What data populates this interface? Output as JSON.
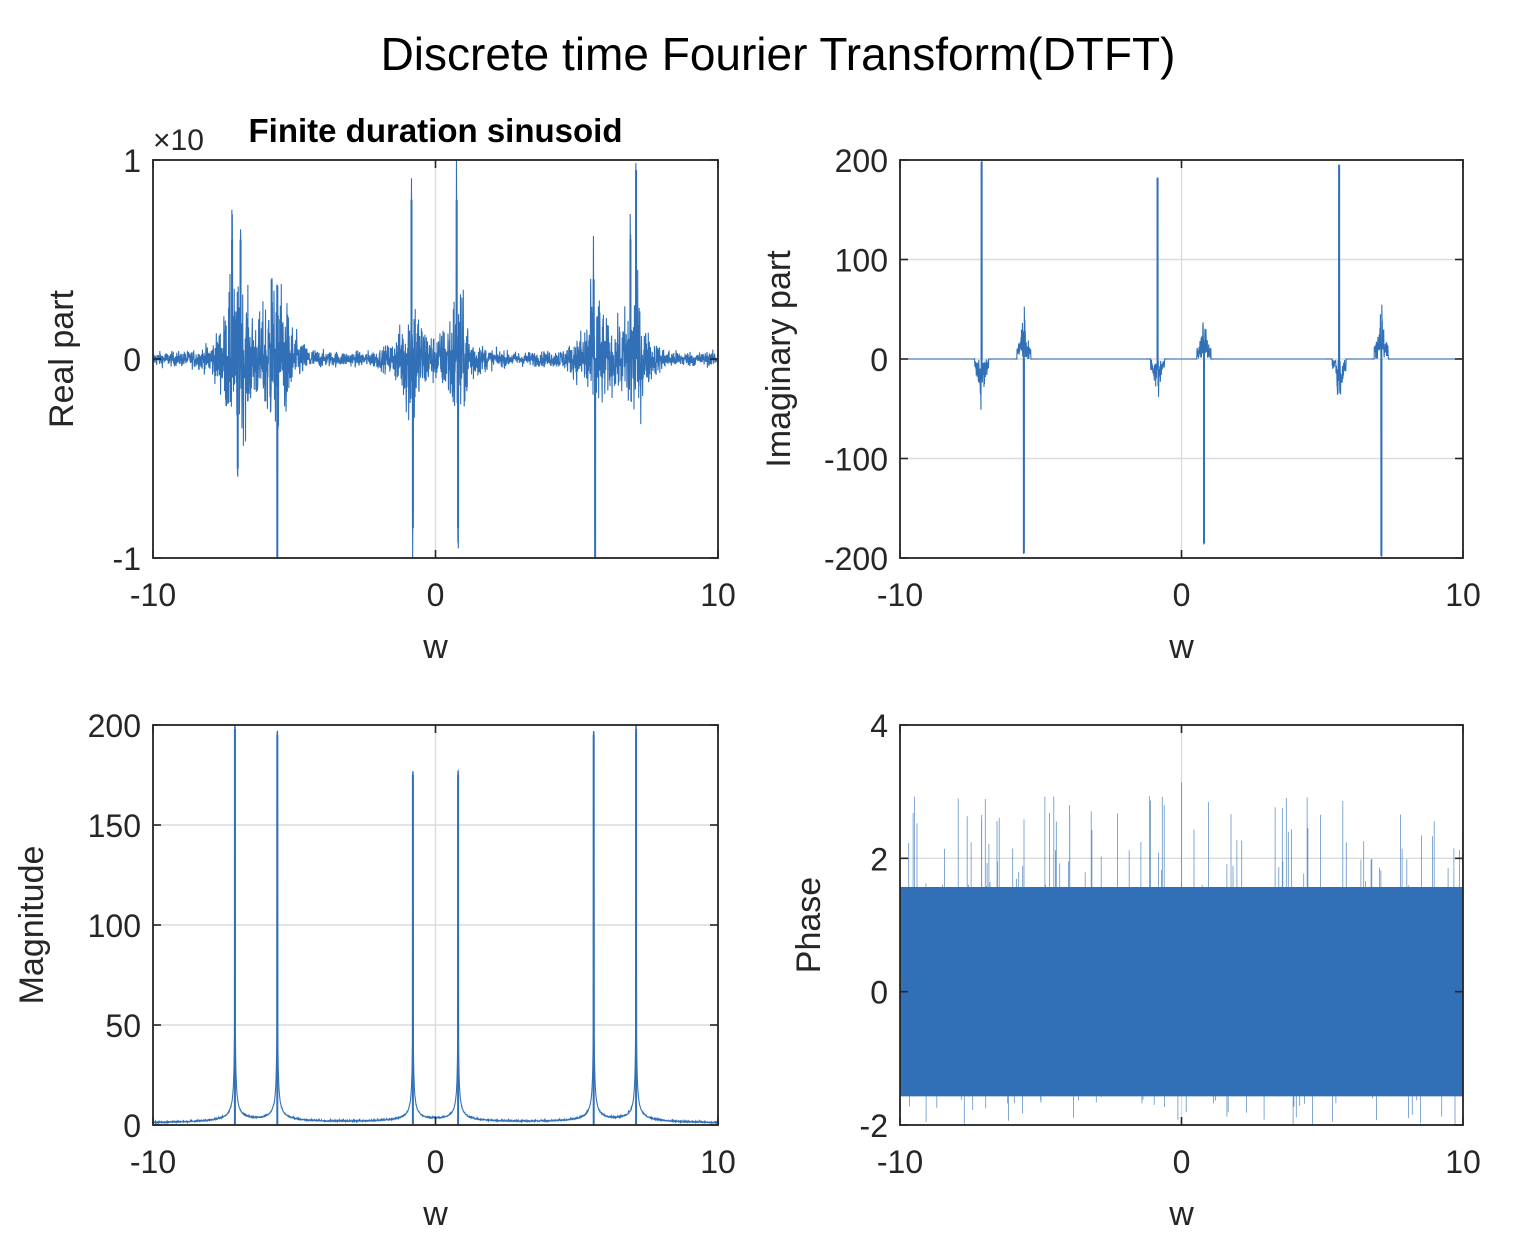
{
  "figure": {
    "suptitle": "Discrete time Fourier Transform(DTFT)",
    "line_color": "#3170b7"
  },
  "chart_data": [
    {
      "type": "line",
      "panel": "top-left",
      "title": "Finite duration sinusoid",
      "xlabel": "w",
      "ylabel": "Real part",
      "exponent_label": "×10",
      "xlim": [
        -10,
        10
      ],
      "ylim": [
        -1,
        1
      ],
      "xticks": [
        -10,
        0,
        10
      ],
      "yticks": [
        -1,
        0,
        1
      ],
      "grid": true,
      "series": [
        {
          "x": [
            -10,
            -7.2,
            -7.0,
            -6.9,
            -5.8,
            -5.6,
            -5.5,
            -0.85,
            -0.8,
            0.75,
            0.8,
            5.6,
            5.65,
            6.9,
            7.1,
            10
          ],
          "y": [
            0,
            0.6,
            -0.55,
            0.6,
            0.4,
            -1.0,
            0.2,
            0.8,
            -0.85,
            0.8,
            -0.85,
            0.4,
            -1.0,
            0.6,
            0.95,
            0
          ]
        }
      ]
    },
    {
      "type": "line",
      "panel": "top-right",
      "title": "",
      "xlabel": "w",
      "ylabel": "Imaginary part",
      "xlim": [
        -10,
        10
      ],
      "ylim": [
        -200,
        200
      ],
      "xticks": [
        -10,
        0,
        10
      ],
      "yticks": [
        -200,
        -100,
        0,
        100,
        200
      ],
      "grid": true,
      "series": [
        {
          "x": [
            -10,
            -7.1,
            -5.6,
            -0.85,
            0.8,
            5.6,
            7.1,
            10
          ],
          "y": [
            0,
            198,
            -195,
            182,
            -185,
            195,
            -198,
            0
          ]
        }
      ]
    },
    {
      "type": "line",
      "panel": "bottom-left",
      "title": "",
      "xlabel": "w",
      "ylabel": "Magnitude",
      "xlim": [
        -10,
        10
      ],
      "ylim": [
        0,
        200
      ],
      "xticks": [
        -10,
        0,
        10
      ],
      "yticks": [
        0,
        50,
        100,
        150,
        200
      ],
      "grid": true,
      "series": [
        {
          "x": [
            -10,
            -7.1,
            -5.6,
            -0.8,
            0.8,
            5.6,
            7.1,
            10
          ],
          "y": [
            0.5,
            198,
            195,
            175,
            175,
            195,
            198,
            0.5
          ]
        }
      ]
    },
    {
      "type": "line",
      "panel": "bottom-right",
      "title": "",
      "xlabel": "w",
      "ylabel": "Phase",
      "xlim": [
        -10,
        10
      ],
      "ylim": [
        -2,
        4
      ],
      "xticks": [
        -10,
        0,
        10
      ],
      "yticks": [
        -2,
        0,
        2,
        4
      ],
      "grid": true,
      "series": [
        {
          "band_range": [
            -1.57,
            1.57
          ],
          "peak_max": 3.14,
          "x": [
            -10,
            0,
            10
          ],
          "y": [
            1.57,
            3.14,
            1.57
          ]
        }
      ]
    }
  ]
}
